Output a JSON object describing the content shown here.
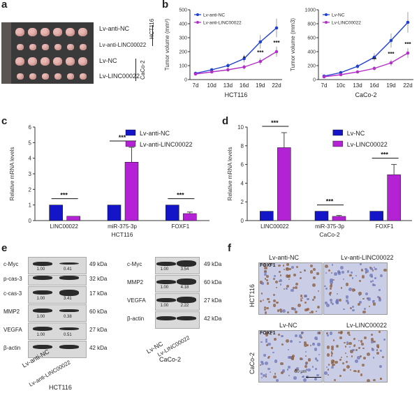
{
  "panels": {
    "a": "a",
    "b": "b",
    "c": "c",
    "d": "d",
    "e": "e",
    "f": "f"
  },
  "panel_a": {
    "labels": [
      "Lv-anti-NC",
      "Lv-anti-LINC00022",
      "Lv-NC",
      "Lv-LINC00022"
    ],
    "group1": "HCT116",
    "group2": "CaCo-2"
  },
  "chart_data": [
    {
      "id": "b-left",
      "type": "line",
      "title": "HCT116",
      "ylabel": "Tumor volume (mm³)",
      "categories": [
        "7d",
        "10d",
        "13d",
        "16d",
        "19d",
        "22d"
      ],
      "ylim": [
        0,
        500
      ],
      "yticks": [
        "0",
        "100",
        "200",
        "300",
        "400",
        "500"
      ],
      "series": [
        {
          "name": "Lv-anti-NC",
          "color": "#1f3fd0",
          "values": [
            45,
            70,
            100,
            150,
            270,
            370
          ]
        },
        {
          "name": "Lv-anti-LINC00022",
          "color": "#b22fc8",
          "values": [
            40,
            55,
            70,
            90,
            130,
            200
          ]
        }
      ],
      "significance": [
        "*",
        "***",
        "***"
      ]
    },
    {
      "id": "b-right",
      "type": "line",
      "title": "CaCo-2",
      "ylabel": "Tumor volume (mm3)",
      "categories": [
        "7d",
        "10c",
        "13d",
        "16d",
        "19d",
        "22d"
      ],
      "ylim": [
        0,
        1000
      ],
      "yticks": [
        "0",
        "200",
        "400",
        "600",
        "800",
        "1000"
      ],
      "series": [
        {
          "name": "Lv-NC",
          "color": "#1f3fd0",
          "values": [
            50,
            100,
            190,
            320,
            560,
            820
          ]
        },
        {
          "name": "Lv-LINC00022",
          "color": "#b22fc8",
          "values": [
            40,
            70,
            110,
            160,
            240,
            380
          ]
        }
      ],
      "significance": [
        "**",
        "***",
        "***"
      ]
    },
    {
      "id": "c",
      "type": "bar",
      "title": "HCT116",
      "ylabel": "Relative mRNA levels",
      "categories": [
        "LINC00022",
        "miR-375-3p",
        "FOXF1"
      ],
      "ylim": [
        0,
        6
      ],
      "yticks": [
        "0",
        "1",
        "2",
        "3",
        "4",
        "5",
        "6"
      ],
      "series": [
        {
          "name": "Lv-anti-NC",
          "color": "#1414c8",
          "values": [
            1.0,
            1.0,
            1.0
          ]
        },
        {
          "name": "Lv-anti-LINC00022",
          "color": "#b422d6",
          "values": [
            0.28,
            3.75,
            0.45
          ]
        }
      ],
      "errors": [
        0.0,
        0.95,
        0.1
      ],
      "significance": [
        "***",
        "***",
        "***"
      ]
    },
    {
      "id": "d",
      "type": "bar",
      "title": "CaCo-2",
      "ylabel": "Relative mRNA levels",
      "categories": [
        "LINC00022",
        "miR-375-3p",
        "FOXF1"
      ],
      "ylim": [
        0,
        10
      ],
      "yticks": [
        "0",
        "2",
        "4",
        "6",
        "8",
        "10"
      ],
      "series": [
        {
          "name": "Lv-NC",
          "color": "#1414c8",
          "values": [
            1.0,
            1.0,
            1.0
          ]
        },
        {
          "name": "Lv-LINC00022",
          "color": "#b422d6",
          "values": [
            7.8,
            0.45,
            4.9
          ]
        }
      ],
      "errors": [
        1.6,
        0.1,
        1.1
      ],
      "significance": [
        "***",
        "***",
        "***"
      ]
    }
  ],
  "panel_e": {
    "left": {
      "rows": [
        {
          "name": "c-Myc",
          "kda": "49 kDa",
          "v1": "1.00",
          "v2": "0.41"
        },
        {
          "name": "p-cas-3",
          "kda": "32 kDa",
          "v1": "",
          "v2": ""
        },
        {
          "name": "c-cas-3",
          "kda": "17 kDa",
          "v1": "1.00",
          "v2": "3.41"
        },
        {
          "name": "MMP2",
          "kda": "60 kDa",
          "v1": "1.00",
          "v2": "0.38"
        },
        {
          "name": "VEGFA",
          "kda": "27 kDa",
          "v1": "1.00",
          "v2": "0.51"
        },
        {
          "name": "β-actin",
          "kda": "42 kDa",
          "v1": "",
          "v2": ""
        }
      ],
      "lane1": "Lv-anti-NC",
      "lane2": "Lv-anti-LINC00022",
      "cell": "HCT116"
    },
    "right": {
      "rows": [
        {
          "name": "c-Myc",
          "kda": "49 kDa",
          "v1": "1.00",
          "v2": "3.54"
        },
        {
          "name": "MMP2",
          "kda": "60 kDa",
          "v1": "1.00",
          "v2": "4.18"
        },
        {
          "name": "VEGFA",
          "kda": "27 kDa",
          "v1": "1.00",
          "v2": "2.22"
        },
        {
          "name": "β-actin",
          "kda": "42 kDa",
          "v1": "",
          "v2": ""
        }
      ],
      "lane1": "Lv-NC",
      "lane2": "Lv-LINC00022",
      "cell": "CaCo-2"
    }
  },
  "panel_f": {
    "top_left": "Lv-anti-NC",
    "top_right": "Lv-anti-LINC00022",
    "bottom_left": "Lv-NC",
    "bottom_right": "Lv-LINC00022",
    "row1": "HCT116",
    "row2": "CaCo-2",
    "stain": "FOXF1",
    "scale": "50 μm"
  }
}
